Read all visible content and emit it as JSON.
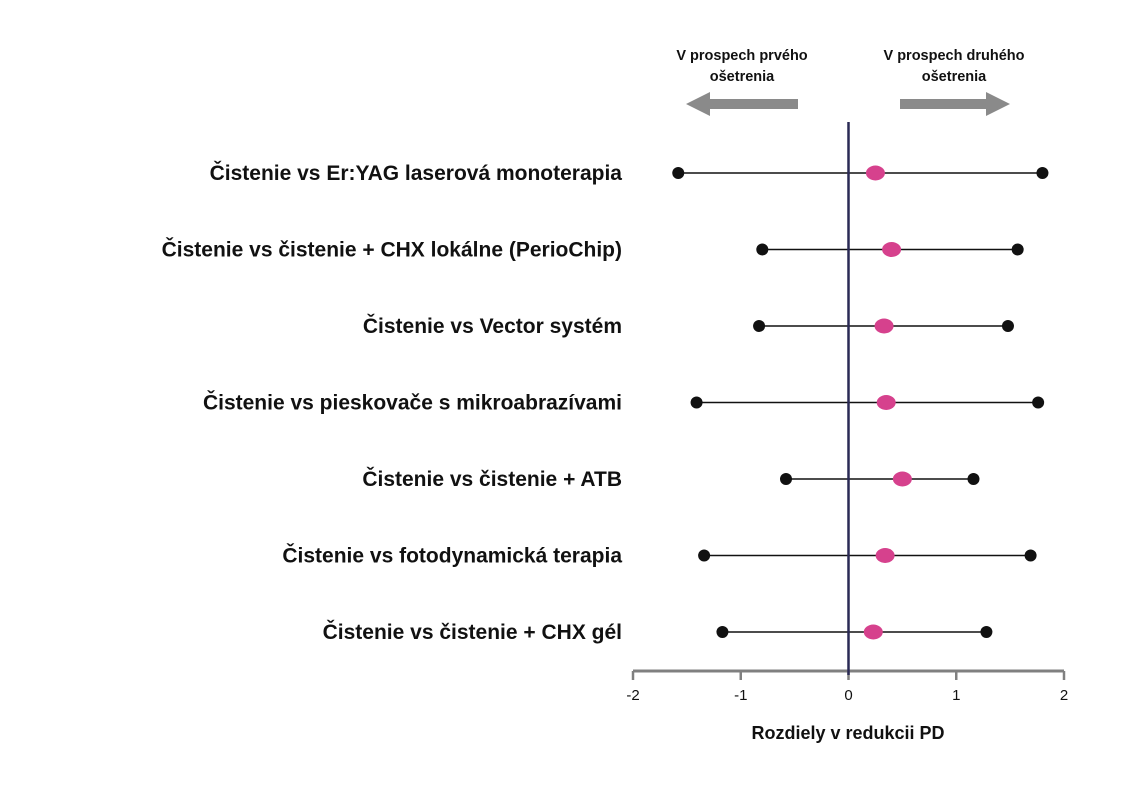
{
  "chart_data": {
    "type": "forest",
    "categories": [
      "Čistenie vs Er:YAG laserová monoterapia",
      "Čistenie vs čistenie + CHX lokálne (PerioChip)",
      "Čistenie vs Vector systém",
      "Čistenie vs pieskovače s mikroabrazívami",
      "Čistenie vs čistenie + ATB",
      "Čistenie vs fotodynamická terapia",
      "Čistenie vs čistenie + CHX gél"
    ],
    "estimates": [
      0.25,
      0.4,
      0.33,
      0.35,
      0.5,
      0.34,
      0.23
    ],
    "lower": [
      -1.58,
      -0.8,
      -0.83,
      -1.41,
      -0.58,
      -1.34,
      -1.17
    ],
    "upper": [
      1.8,
      1.57,
      1.48,
      1.76,
      1.16,
      1.69,
      1.28
    ],
    "xlim": [
      -2,
      2
    ],
    "x_ticks": [
      -2,
      -1,
      0,
      1,
      2
    ],
    "x_tick_labels": [
      "-2",
      "-1",
      "0",
      "1",
      "2"
    ],
    "xlabel": "Rozdiely v redukcii PD",
    "reference_line": 0,
    "direction_labels": {
      "left": [
        "V prospech prvého",
        "ošetrenia"
      ],
      "right": [
        "V prospech druhého",
        "ošetrenia"
      ]
    },
    "colors": {
      "estimate": "#d6418d",
      "interval": "#111111",
      "reference_line": "#2a2a55",
      "axis": "#808080",
      "arrow": "#8a8a8a"
    }
  }
}
